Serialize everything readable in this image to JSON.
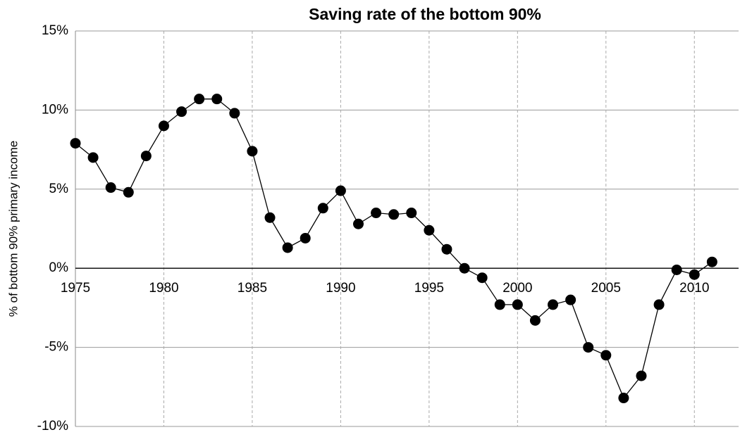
{
  "chart_data": {
    "type": "line",
    "title": "Saving rate of the bottom 90%",
    "ylabel": "% of bottom 90% primary income",
    "x": [
      1975,
      1976,
      1977,
      1978,
      1979,
      1980,
      1981,
      1982,
      1983,
      1984,
      1985,
      1986,
      1987,
      1988,
      1989,
      1990,
      1991,
      1992,
      1993,
      1994,
      1995,
      1996,
      1997,
      1998,
      1999,
      2000,
      2001,
      2002,
      2003,
      2004,
      2005,
      2006,
      2007,
      2008,
      2009,
      2010,
      2011
    ],
    "series": [
      {
        "name": "Saving rate",
        "color": "#000000",
        "values": [
          7.9,
          7.0,
          5.1,
          4.8,
          7.1,
          9.0,
          9.9,
          10.7,
          10.7,
          9.8,
          7.4,
          3.2,
          1.3,
          1.9,
          3.8,
          4.9,
          2.8,
          3.5,
          3.4,
          3.5,
          2.4,
          1.2,
          0.0,
          -0.6,
          -2.3,
          -2.3,
          -3.3,
          -2.3,
          -2.0,
          -5.0,
          -5.5,
          -8.2,
          -6.8,
          -2.3,
          -0.1,
          -0.4,
          0.4
        ]
      }
    ],
    "xlim": [
      1975,
      2012.5
    ],
    "xticks": [
      1975,
      1980,
      1985,
      1990,
      1995,
      2000,
      2005,
      2010
    ],
    "ylim": [
      -10,
      15
    ],
    "yticks": [
      {
        "value": -10,
        "label": "-10%"
      },
      {
        "value": -5,
        "label": "-5%"
      },
      {
        "value": 0,
        "label": "0%"
      },
      {
        "value": 5,
        "label": "5%"
      },
      {
        "value": 10,
        "label": "10%"
      },
      {
        "value": 15,
        "label": "15%"
      }
    ],
    "grid": true
  }
}
